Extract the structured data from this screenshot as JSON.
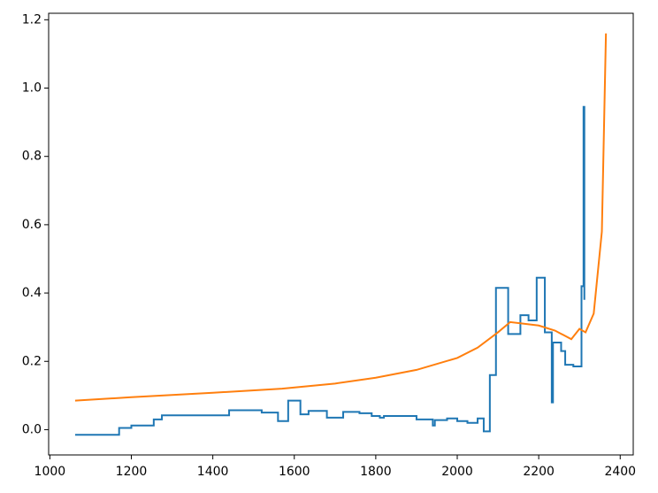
{
  "chart_data": {
    "type": "line",
    "series": [
      {
        "color": "#1f77b4",
        "drawstyle": "steps-post",
        "x": [
          1062,
          1170,
          1200,
          1255,
          1275,
          1440,
          1520,
          1560,
          1585,
          1615,
          1635,
          1680,
          1720,
          1760,
          1790,
          1810,
          1820,
          1900,
          1940,
          1945,
          1975,
          2000,
          2025,
          2050,
          2065,
          2080,
          2095,
          2125,
          2155,
          2175,
          2195,
          2215,
          2232,
          2235,
          2255,
          2265,
          2285,
          2305,
          2310,
          2312
        ],
        "values": [
          -0.015,
          0.005,
          0.012,
          0.03,
          0.042,
          0.057,
          0.05,
          0.025,
          0.085,
          0.045,
          0.055,
          0.035,
          0.052,
          0.048,
          0.04,
          0.035,
          0.04,
          0.03,
          0.012,
          0.028,
          0.033,
          0.025,
          0.02,
          0.033,
          -0.005,
          0.16,
          0.415,
          0.28,
          0.335,
          0.32,
          0.445,
          0.285,
          0.08,
          0.255,
          0.23,
          0.19,
          0.185,
          0.42,
          0.945,
          0.38
        ]
      },
      {
        "color": "#ff7f0e",
        "x": [
          1062,
          1200,
          1400,
          1570,
          1700,
          1800,
          1900,
          2000,
          2050,
          2100,
          2130,
          2200,
          2240,
          2280,
          2300,
          2315,
          2335,
          2355,
          2365
        ],
        "values": [
          0.085,
          0.095,
          0.108,
          0.12,
          0.135,
          0.152,
          0.175,
          0.21,
          0.24,
          0.285,
          0.315,
          0.305,
          0.29,
          0.265,
          0.295,
          0.285,
          0.34,
          0.58,
          1.16
        ]
      }
    ],
    "xlim": [
      997,
      2432
    ],
    "xticks": [
      1000,
      1200,
      1400,
      1600,
      1800,
      2000,
      2200,
      2400
    ],
    "ylim": [
      -0.074,
      1.219
    ],
    "yticks": [
      {
        "value": 0,
        "label": "0.0"
      },
      0.2,
      0.4,
      0.6,
      0.8,
      {
        "value": 1,
        "label": "1.0"
      },
      1.2
    ]
  }
}
